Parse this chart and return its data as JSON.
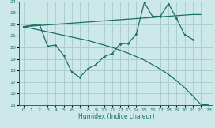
{
  "xlabel": "Humidex (Indice chaleur)",
  "xlim": [
    -0.5,
    23.5
  ],
  "ylim": [
    15,
    24
  ],
  "yticks": [
    15,
    16,
    17,
    18,
    19,
    20,
    21,
    22,
    23,
    24
  ],
  "xticks": [
    0,
    1,
    2,
    3,
    4,
    5,
    6,
    7,
    8,
    9,
    10,
    11,
    12,
    13,
    14,
    15,
    16,
    17,
    18,
    19,
    20,
    21,
    22,
    23
  ],
  "bg_color": "#cce8e8",
  "grid_color": "#aacfcf",
  "line_color": "#1a6e6a",
  "line1_x": [
    0,
    1,
    2,
    3,
    4,
    5,
    6,
    7,
    8,
    9,
    10,
    11,
    12,
    13,
    14,
    15,
    16,
    17,
    18,
    19,
    20,
    21
  ],
  "line1_y": [
    21.8,
    21.9,
    22.0,
    20.1,
    20.2,
    19.3,
    17.85,
    17.4,
    18.15,
    18.5,
    19.2,
    19.45,
    20.3,
    20.35,
    21.15,
    23.9,
    22.7,
    22.7,
    23.8,
    22.5,
    21.1,
    20.7
  ],
  "line2_x": [
    0,
    1,
    2,
    3,
    4,
    5,
    6,
    7,
    8,
    9,
    10,
    11,
    12,
    13,
    14,
    15,
    16,
    17,
    18,
    19,
    20,
    21,
    22
  ],
  "line2_y": [
    21.8,
    21.85,
    21.9,
    21.95,
    22.0,
    22.05,
    22.1,
    22.15,
    22.2,
    22.25,
    22.3,
    22.35,
    22.4,
    22.45,
    22.5,
    22.55,
    22.6,
    22.65,
    22.7,
    22.75,
    22.8,
    22.85,
    22.85
  ],
  "line3_x": [
    0,
    1,
    2,
    3,
    4,
    5,
    6,
    7,
    8,
    9,
    10,
    11,
    12,
    13,
    14,
    15,
    16,
    17,
    18,
    19,
    20,
    21,
    22,
    23
  ],
  "line3_y": [
    21.8,
    21.65,
    21.5,
    21.35,
    21.2,
    21.05,
    20.9,
    20.75,
    20.6,
    20.4,
    20.2,
    20.0,
    19.75,
    19.5,
    19.2,
    18.9,
    18.5,
    18.1,
    17.65,
    17.1,
    16.5,
    15.8,
    15.05,
    15.0
  ]
}
